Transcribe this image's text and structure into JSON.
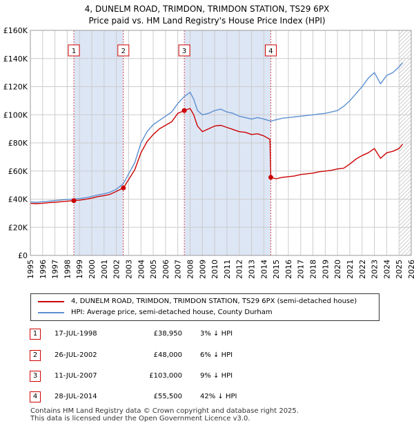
{
  "title_line1": "4, DUNELM ROAD, TRIMDON, TRIMDON STATION, TS29 6PX",
  "title_line2": "Price paid vs. HM Land Registry's House Price Index (HPI)",
  "colors": {
    "price_paid": "#cc0000",
    "hpi": "#5b8fd1",
    "shade": "#dde6f5",
    "grid": "#cccccc",
    "text": "#000000"
  },
  "legend": {
    "price_paid_label": "4, DUNELM ROAD, TRIMDON, TRIMDON STATION, TS29 6PX (semi-detached house)",
    "hpi_label": "HPI: Average price, semi-detached house, County Durham"
  },
  "sales": [
    {
      "num": "1",
      "date": "17-JUL-1998",
      "price": "£38,950",
      "hpi": "3% ↓ HPI"
    },
    {
      "num": "2",
      "date": "26-JUL-2002",
      "price": "£48,000",
      "hpi": "6% ↓ HPI"
    },
    {
      "num": "3",
      "date": "11-JUL-2007",
      "price": "£103,000",
      "hpi": "9% ↓ HPI"
    },
    {
      "num": "4",
      "date": "28-JUL-2014",
      "price": "£55,500",
      "hpi": "42% ↓ HPI"
    }
  ],
  "footer_line1": "Contains HM Land Registry data © Crown copyright and database right 2025.",
  "footer_line2": "This data is licensed under the Open Government Licence v3.0.",
  "chart_data": {
    "type": "line",
    "title": "4, DUNELM ROAD, TRIMDON, TRIMDON STATION, TS29 6PX — Price paid vs. HM Land Registry's House Price Index (HPI)",
    "xlabel": "",
    "ylabel": "",
    "xlim": [
      1995,
      2026
    ],
    "ylim": [
      0,
      160000
    ],
    "grid": true,
    "legend_position": "below",
    "x_ticks": [
      1995,
      1996,
      1997,
      1998,
      1999,
      2000,
      2001,
      2002,
      2003,
      2004,
      2005,
      2006,
      2007,
      2008,
      2009,
      2010,
      2011,
      2012,
      2013,
      2014,
      2015,
      2016,
      2017,
      2018,
      2019,
      2020,
      2021,
      2022,
      2023,
      2024,
      2025,
      2026
    ],
    "y_ticks": [
      {
        "value": 0,
        "label": "£0"
      },
      {
        "value": 20000,
        "label": "£20K"
      },
      {
        "value": 40000,
        "label": "£40K"
      },
      {
        "value": 60000,
        "label": "£60K"
      },
      {
        "value": 80000,
        "label": "£80K"
      },
      {
        "value": 100000,
        "label": "£100K"
      },
      {
        "value": 120000,
        "label": "£120K"
      },
      {
        "value": 140000,
        "label": "£140K"
      },
      {
        "value": 160000,
        "label": "£160K"
      }
    ],
    "shaded_periods": [
      [
        1998.54,
        2002.57
      ],
      [
        2007.53,
        2014.57
      ]
    ],
    "future_hatch_from": 2025.0,
    "series": [
      {
        "name": "HPI: Average price, semi-detached house, County Durham",
        "color": "#5b8fd1",
        "x": [
          1995.0,
          1995.5,
          1996.0,
          1996.5,
          1997.0,
          1997.5,
          1998.0,
          1998.54,
          1999.0,
          1999.5,
          2000.0,
          2000.5,
          2001.0,
          2001.5,
          2002.0,
          2002.57,
          2003.0,
          2003.5,
          2004.0,
          2004.5,
          2005.0,
          2005.5,
          2006.0,
          2006.5,
          2007.0,
          2007.53,
          2008.0,
          2008.3,
          2008.6,
          2009.0,
          2009.5,
          2010.0,
          2010.5,
          2011.0,
          2011.5,
          2012.0,
          2012.5,
          2013.0,
          2013.5,
          2014.0,
          2014.57,
          2015.0,
          2015.5,
          2016.0,
          2016.5,
          2017.0,
          2017.5,
          2018.0,
          2018.5,
          2019.0,
          2019.5,
          2020.0,
          2020.5,
          2021.0,
          2021.5,
          2022.0,
          2022.5,
          2023.0,
          2023.5,
          2024.0,
          2024.5,
          2025.0,
          2025.3
        ],
        "y": [
          38000,
          37800,
          38200,
          38600,
          39000,
          39400,
          39800,
          40100,
          40400,
          41000,
          42000,
          43000,
          43800,
          45000,
          47000,
          51000,
          58000,
          66000,
          80000,
          88000,
          93000,
          96000,
          99000,
          102000,
          108000,
          113000,
          116000,
          111000,
          103000,
          100000,
          101000,
          103000,
          104000,
          102000,
          101000,
          99000,
          98000,
          97000,
          98000,
          97000,
          95500,
          96500,
          97500,
          98000,
          98500,
          99000,
          99500,
          100000,
          100500,
          101000,
          102000,
          103000,
          106000,
          110000,
          115000,
          120000,
          126000,
          130000,
          122000,
          128000,
          130000,
          134000,
          137000
        ]
      },
      {
        "name": "4, DUNELM ROAD, TRIMDON, TRIMDON STATION, TS29 6PX (semi-detached house)",
        "color": "#cc0000",
        "x": [
          1995.0,
          1995.5,
          1996.0,
          1996.5,
          1997.0,
          1997.5,
          1998.0,
          1998.54,
          1999.0,
          1999.5,
          2000.0,
          2000.5,
          2001.0,
          2001.5,
          2002.0,
          2002.57,
          2003.0,
          2003.5,
          2004.0,
          2004.5,
          2005.0,
          2005.5,
          2006.0,
          2006.5,
          2007.0,
          2007.53,
          2008.0,
          2008.3,
          2008.6,
          2009.0,
          2009.5,
          2010.0,
          2010.5,
          2011.0,
          2011.5,
          2012.0,
          2012.5,
          2013.0,
          2013.5,
          2014.0,
          2014.5,
          2014.57,
          2015.0,
          2015.5,
          2016.0,
          2016.5,
          2017.0,
          2017.5,
          2018.0,
          2018.5,
          2019.0,
          2019.5,
          2020.0,
          2020.5,
          2021.0,
          2021.5,
          2022.0,
          2022.5,
          2023.0,
          2023.5,
          2024.0,
          2024.5,
          2025.0,
          2025.3
        ],
        "y": [
          37000,
          36800,
          37100,
          37500,
          37800,
          38200,
          38600,
          38950,
          39300,
          39900,
          40800,
          41800,
          42500,
          43500,
          45500,
          48000,
          54000,
          61000,
          73000,
          81000,
          86000,
          90000,
          92500,
          95000,
          101000,
          103000,
          104500,
          100000,
          92000,
          88000,
          90000,
          92000,
          92500,
          91000,
          89500,
          88000,
          87500,
          86000,
          86500,
          85000,
          82500,
          55500,
          54500,
          55500,
          56000,
          56500,
          57500,
          58000,
          58500,
          59500,
          60000,
          60500,
          61500,
          62000,
          65000,
          68500,
          71000,
          73000,
          76000,
          69000,
          73000,
          74000,
          76000,
          79000
        ]
      }
    ],
    "sale_markers": [
      {
        "label": "1",
        "x": 1998.54,
        "y": 38950
      },
      {
        "label": "2",
        "x": 2002.57,
        "y": 48000
      },
      {
        "label": "3",
        "x": 2007.53,
        "y": 103000
      },
      {
        "label": "4",
        "x": 2014.57,
        "y": 55500
      }
    ]
  }
}
